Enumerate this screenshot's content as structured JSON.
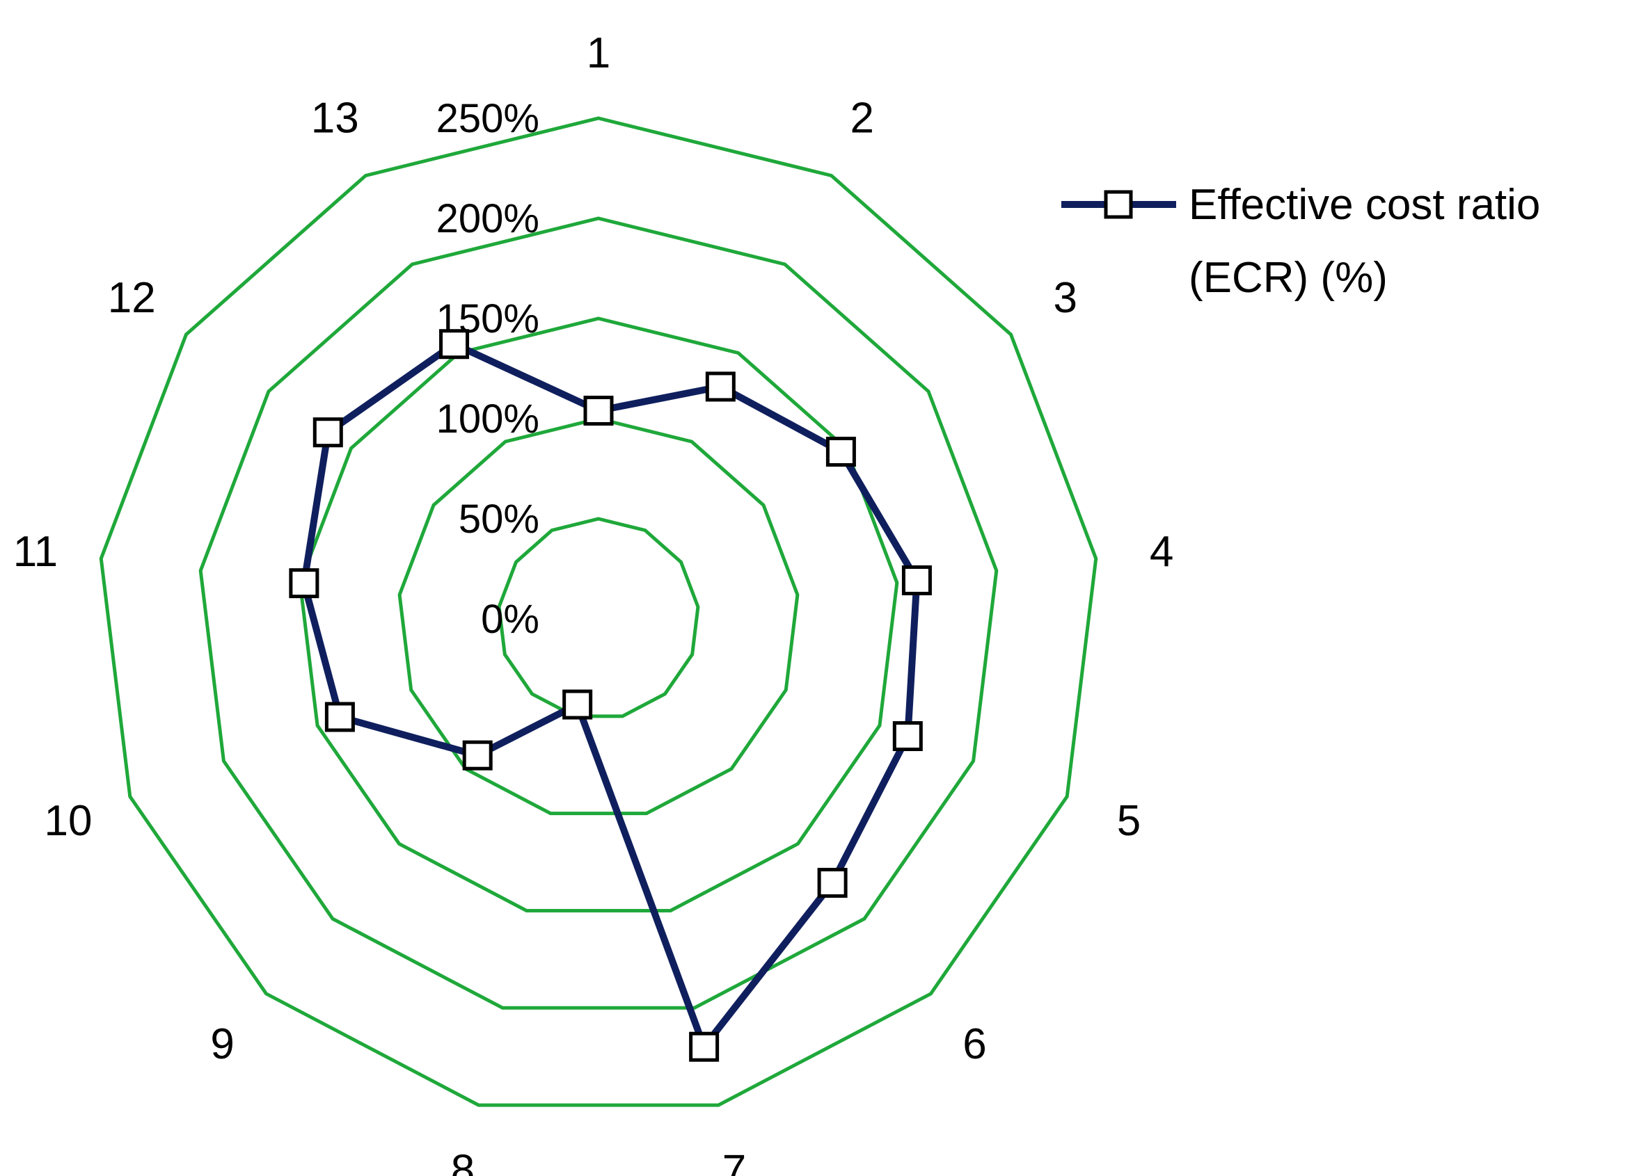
{
  "chart_data": {
    "type": "radar",
    "categories": [
      "1",
      "2",
      "3",
      "4",
      "5",
      "6",
      "7",
      "8",
      "9",
      "10",
      "11",
      "12",
      "13"
    ],
    "series": [
      {
        "name": "Effective cost ratio (ECR) (%)",
        "values": [
          104,
          131,
          147,
          160,
          165,
          176,
          220,
          44,
          91,
          138,
          148,
          164,
          155
        ],
        "color": "#0f1f5e",
        "marker": "square-open"
      }
    ],
    "rings": [
      0,
      50,
      100,
      150,
      200,
      250
    ],
    "ring_labels": [
      "0%",
      "50%",
      "100%",
      "150%",
      "200%",
      "250%"
    ],
    "range": [
      0,
      250
    ],
    "grid_color": "#1fa83a",
    "legend": {
      "position": "top-right",
      "lines": [
        "Effective cost ratio",
        "(ECR) (%)"
      ]
    }
  }
}
